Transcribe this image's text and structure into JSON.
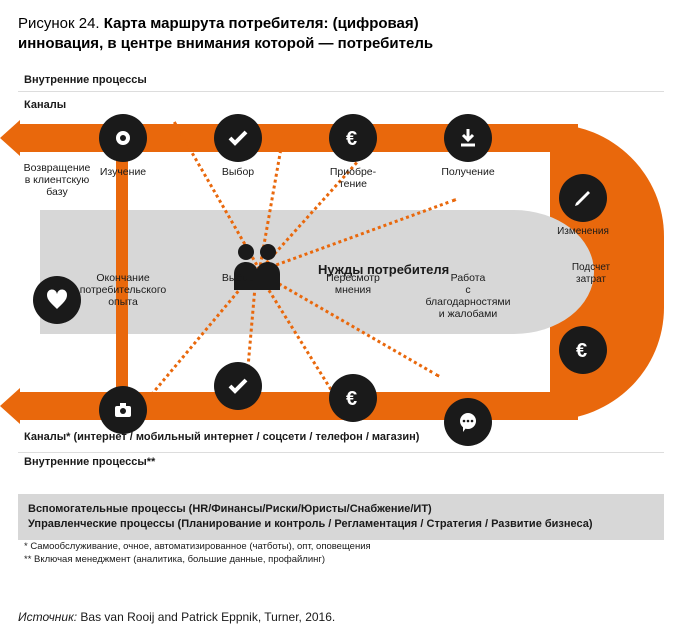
{
  "figure": {
    "number_label": "Рисунок 24.",
    "title_line1": "Карта маршрута потребителя: (цифровая)",
    "title_line2": "инновация, в центре внимания которой — потребитель"
  },
  "bands": {
    "inner_top": "Внутренние процессы",
    "channels_top": "Каналы",
    "channels_bottom": "Каналы* (интернет / мобильный интернет / соцсети / телефон / магазин)",
    "inner_bottom": "Внутренние процессы**"
  },
  "center": {
    "label": "Нужды потребителя"
  },
  "steps": {
    "explore": {
      "label": "Изучение",
      "icon": "eye"
    },
    "choose": {
      "label": "Выбор",
      "icon": "check"
    },
    "buy": {
      "label": "Приобре-\nтение",
      "icon": "euro"
    },
    "receive": {
      "label": "Получение",
      "icon": "download"
    },
    "change": {
      "label": "Изменения",
      "icon": "pencil"
    },
    "cost": {
      "label": "Подсчет\nзатрат",
      "icon": ""
    },
    "cost2": {
      "label": "",
      "icon": "euro"
    },
    "complain": {
      "label": "Работа\nс благодарностями\nи жалобами",
      "icon": "chat"
    },
    "review": {
      "label": "Пересмотр\nмнения",
      "icon": "euro"
    },
    "choose2": {
      "label": "Выбор",
      "icon": "check"
    },
    "end": {
      "label": "Окончание\nпотребительского\nопыта",
      "icon": "camera"
    },
    "return": {
      "label": "Возвращение\nв клиентскую\nбазу",
      "icon": "heart"
    }
  },
  "colors": {
    "track": "#e9680c",
    "circle": "#1a1a1a",
    "icon_fill": "#ffffff",
    "grey": "#d7d7d7",
    "text": "#1a1a1a",
    "background": "#ffffff"
  },
  "grey_box": {
    "line1": "Вспомогательные процессы (HR/Финансы/Риски/Юристы/Снабжение/ИТ)",
    "line2": "Управленческие процессы (Планирование и контроль / Регламентация / Стратегия / Развитие бизнеса)"
  },
  "footnotes": {
    "f1": "* Самообслуживание, очное, автоматизированное (чатботы), опт, оповещения",
    "f2": "** Включая менеджмент (аналитика, большие данные, профайлинг)"
  },
  "source": {
    "label": "Источник:",
    "text": "Bas van Rooij and Patrick Eppnik, Turner, 2016."
  },
  "dotted_lines": [
    {
      "angle": -120,
      "length": 170
    },
    {
      "angle": -80,
      "length": 140
    },
    {
      "angle": -48,
      "length": 170
    },
    {
      "angle": -20,
      "length": 210
    },
    {
      "angle": 30,
      "length": 210
    },
    {
      "angle": 58,
      "length": 170
    },
    {
      "angle": 95,
      "length": 140
    },
    {
      "angle": 130,
      "length": 170
    }
  ]
}
